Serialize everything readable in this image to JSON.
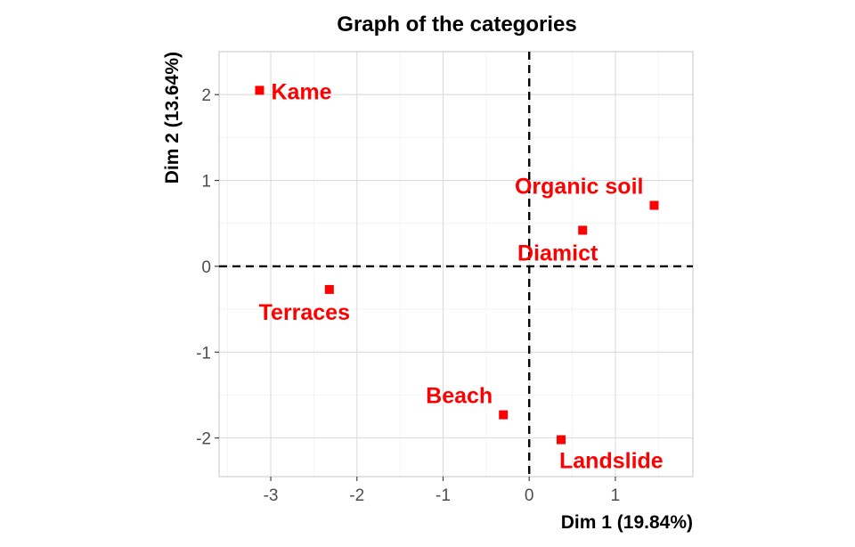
{
  "chart_data": {
    "type": "scatter",
    "title": "Graph of the categories",
    "xlabel": "Dim 1 (19.84%)",
    "ylabel": "Dim 2 (13.64%)",
    "xlim": [
      -3.6,
      1.9
    ],
    "ylim": [
      -2.45,
      2.5
    ],
    "xticks": [
      -3,
      -2,
      -1,
      0,
      1
    ],
    "yticks": [
      -2,
      -1,
      0,
      1,
      2
    ],
    "grid": true,
    "reference_lines": {
      "x": 0,
      "y": 0,
      "style": "dashed"
    },
    "point_color": "#ff0000",
    "points": [
      {
        "label": "Kame",
        "x": -3.13,
        "y": 2.05,
        "label_pos": "right"
      },
      {
        "label": "Organic soil",
        "x": 1.45,
        "y": 0.71,
        "label_pos": "top-left"
      },
      {
        "label": "Diamict",
        "x": 0.62,
        "y": 0.42,
        "label_pos": "bottom"
      },
      {
        "label": "Terraces",
        "x": -2.32,
        "y": -0.27,
        "label_pos": "bottom"
      },
      {
        "label": "Beach",
        "x": -0.3,
        "y": -1.73,
        "label_pos": "top-left"
      },
      {
        "label": "Landslide",
        "x": 0.37,
        "y": -2.02,
        "label_pos": "bottom-right"
      }
    ]
  }
}
